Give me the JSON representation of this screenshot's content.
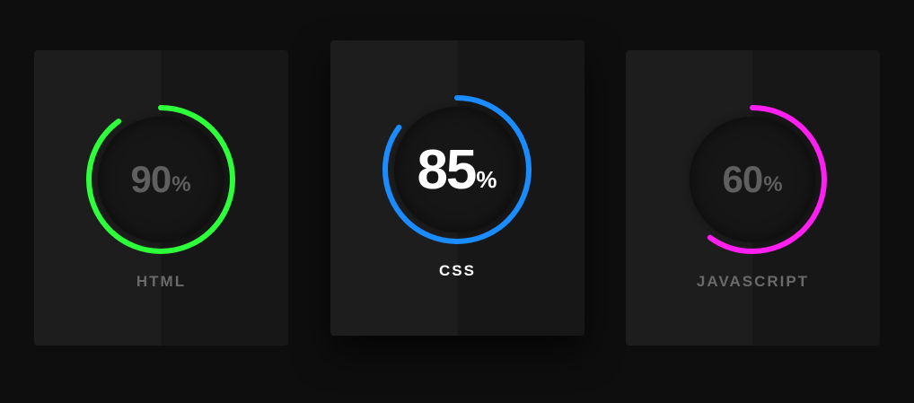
{
  "skills": [
    {
      "name": "HTML",
      "percent": 90,
      "value_text": "90",
      "unit": "%",
      "color": "#2dff3a",
      "active": false
    },
    {
      "name": "CSS",
      "percent": 85,
      "value_text": "85",
      "unit": "%",
      "color": "#1a8cff",
      "active": true
    },
    {
      "name": "JAVASCRIPT",
      "percent": 60,
      "value_text": "60",
      "unit": "%",
      "color": "#ff1ff0",
      "active": false
    }
  ]
}
